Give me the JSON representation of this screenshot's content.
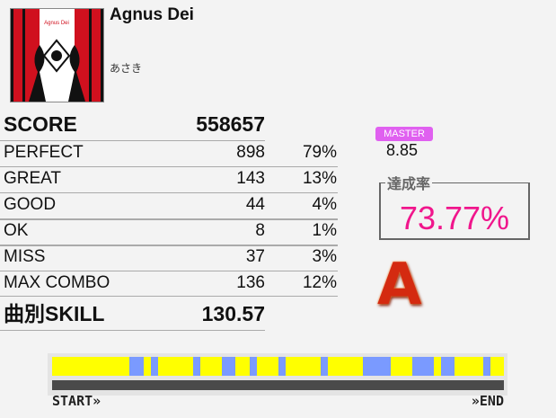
{
  "song": {
    "title": "Agnus Dei",
    "artist": "あさき",
    "jacket_text": "Agnus Dei"
  },
  "score": {
    "label": "SCORE",
    "value": "558657"
  },
  "judgements": [
    {
      "label": "PERFECT",
      "count": "898",
      "percent": "79%"
    },
    {
      "label": "GREAT",
      "count": "143",
      "percent": "13%"
    },
    {
      "label": "GOOD",
      "count": "44",
      "percent": "4%"
    },
    {
      "label": "OK",
      "count": "8",
      "percent": "1%"
    },
    {
      "label": "MISS",
      "count": "37",
      "percent": "3%"
    },
    {
      "label": "MAX COMBO",
      "count": "136",
      "percent": "12%"
    }
  ],
  "skill": {
    "label": "曲別SKILL",
    "value": "130.57"
  },
  "difficulty": {
    "label": "MASTER",
    "level": "8.85",
    "color": "#e060f0"
  },
  "achievement": {
    "label": "達成率",
    "value": "73.77%",
    "color": "#f0168c"
  },
  "rank": "A",
  "gauge": {
    "base_color": "#ffff00",
    "miss_color": "#7a9aff",
    "segments": [
      [
        0.171,
        0.203
      ],
      [
        0.219,
        0.235
      ],
      [
        0.312,
        0.328
      ],
      [
        0.376,
        0.406
      ],
      [
        0.437,
        0.453
      ],
      [
        0.501,
        0.516
      ],
      [
        0.594,
        0.61
      ],
      [
        0.688,
        0.749
      ],
      [
        0.797,
        0.845
      ],
      [
        0.861,
        0.891
      ],
      [
        0.954,
        0.97
      ]
    ]
  },
  "timeline": {
    "start": "START»",
    "end": "»END"
  }
}
